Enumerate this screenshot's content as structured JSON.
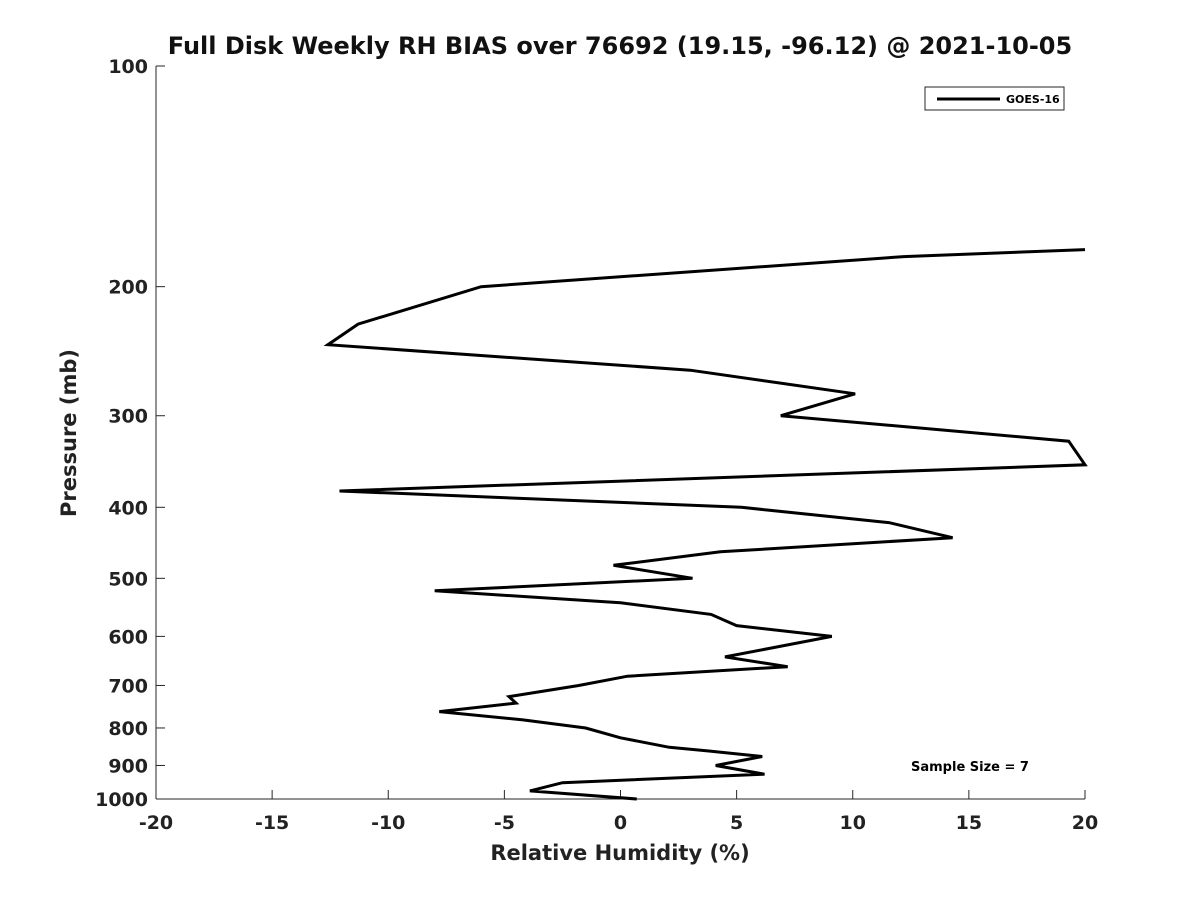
{
  "chart_data": {
    "type": "line",
    "title": "Full Disk Weekly RH BIAS over 76692 (19.15, -96.12) @ 2021-10-05",
    "xlabel": "Relative Humidity (%)",
    "ylabel": "Pressure (mb)",
    "xlim": [
      -20,
      20
    ],
    "ylim": [
      1000,
      100
    ],
    "y_scale": "log",
    "grid": false,
    "legend_position": "top-right",
    "x_ticks": [
      "-20",
      "-15",
      "-10",
      "-5",
      "0",
      "5",
      "10",
      "15",
      "20"
    ],
    "y_ticks": [
      "100",
      "200",
      "300",
      "400",
      "500",
      "600",
      "700",
      "800",
      "900",
      "1000"
    ],
    "annotation": "Sample Size = 7",
    "series": [
      {
        "name": "GOES-16",
        "color": "#000000",
        "points": [
          [
            0.7,
            1000
          ],
          [
            -3.9,
            975
          ],
          [
            -2.5,
            950
          ],
          [
            6.2,
            925
          ],
          [
            4.1,
            900
          ],
          [
            6.1,
            875
          ],
          [
            3.8,
            860
          ],
          [
            2.1,
            850
          ],
          [
            0.0,
            825
          ],
          [
            -1.5,
            800
          ],
          [
            -4.2,
            780
          ],
          [
            -7.8,
            760
          ],
          [
            -4.5,
            740
          ],
          [
            -4.8,
            725
          ],
          [
            -1.8,
            700
          ],
          [
            0.3,
            680
          ],
          [
            7.2,
            660
          ],
          [
            4.5,
            640
          ],
          [
            9.1,
            600
          ],
          [
            5.0,
            580
          ],
          [
            3.9,
            560
          ],
          [
            0.0,
            540
          ],
          [
            -8.0,
            520
          ],
          [
            3.1,
            500
          ],
          [
            -0.3,
            480
          ],
          [
            4.3,
            460
          ],
          [
            14.3,
            440
          ],
          [
            11.6,
            420
          ],
          [
            5.2,
            400
          ],
          [
            -12.1,
            380
          ],
          [
            20.0,
            350
          ],
          [
            19.3,
            325
          ],
          [
            6.9,
            300
          ],
          [
            10.1,
            280
          ],
          [
            3.0,
            260
          ],
          [
            -12.6,
            240
          ],
          [
            -11.3,
            225
          ],
          [
            -6.0,
            200
          ],
          [
            12.2,
            182
          ],
          [
            20.0,
            178
          ]
        ]
      }
    ]
  }
}
